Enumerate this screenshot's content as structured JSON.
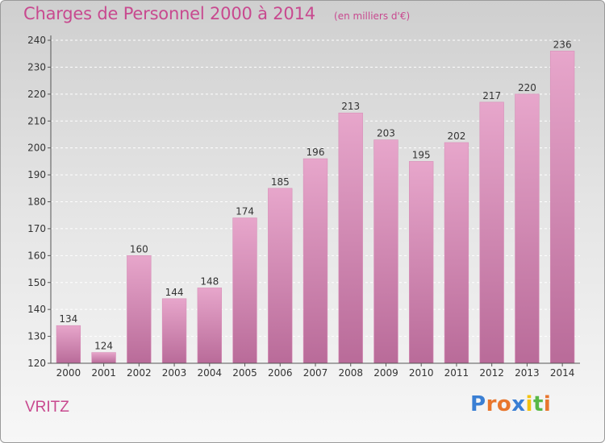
{
  "header": {
    "title": "Charges de Personnel 2000 à 2014",
    "unit": "(en milliers d'€)"
  },
  "footer": {
    "commune": "VRITZ",
    "brand": "Proxiti",
    "brand_colors": [
      "#3a7fd4",
      "#e8762d",
      "#e8762d",
      "#3a7fd4",
      "#f4c20d",
      "#59b847",
      "#e8762d"
    ]
  },
  "colors": {
    "bar_top": "#e7a6cb",
    "bar_bottom": "#b96b99",
    "text": "#333333",
    "accent": "#c8498f"
  },
  "chart_data": {
    "type": "bar",
    "title": "Charges de Personnel 2000 à 2014",
    "categories": [
      "2000",
      "2001",
      "2002",
      "2003",
      "2004",
      "2005",
      "2006",
      "2007",
      "2008",
      "2009",
      "2010",
      "2011",
      "2012",
      "2013",
      "2014"
    ],
    "values": [
      134,
      124,
      160,
      144,
      148,
      174,
      185,
      196,
      213,
      203,
      195,
      202,
      217,
      220,
      236
    ],
    "ylim": [
      120,
      240
    ],
    "yticks": [
      120,
      130,
      140,
      150,
      160,
      170,
      180,
      190,
      200,
      210,
      220,
      230,
      240
    ],
    "grid": true,
    "data_labels": true
  }
}
